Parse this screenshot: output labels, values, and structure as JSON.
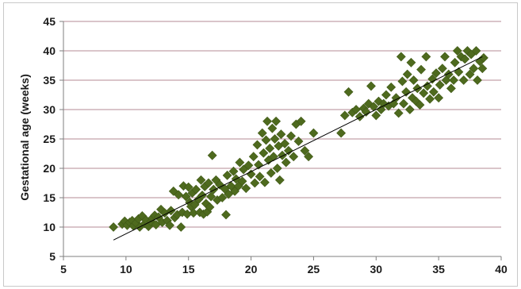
{
  "colors": {
    "marker": "#4e6a1e",
    "marker_edge": "#3f5816",
    "grid": "#b58b96",
    "axis": "#7f7f7f",
    "trendline": "#000000"
  },
  "chart_data": {
    "type": "scatter",
    "title": "",
    "xlabel": "",
    "ylabel": "Gestational age (weeks)",
    "xlim": [
      5,
      40
    ],
    "ylim": [
      5,
      45
    ],
    "x_ticks": [
      5,
      10,
      15,
      20,
      25,
      30,
      35,
      40
    ],
    "y_ticks": [
      5,
      10,
      15,
      20,
      25,
      30,
      35,
      40,
      45
    ],
    "grid": "horizontal",
    "marker": "diamond",
    "trendline": {
      "x": [
        9,
        38.5
      ],
      "y": [
        7.8,
        39.0
      ]
    },
    "series": [
      {
        "points": [
          [
            9.0,
            10.0
          ],
          [
            9.7,
            10.5
          ],
          [
            9.9,
            11.0
          ],
          [
            10.1,
            10.3
          ],
          [
            10.3,
            10.8
          ],
          [
            10.5,
            11.1
          ],
          [
            10.6,
            10.2
          ],
          [
            10.8,
            10.7
          ],
          [
            11.0,
            11.4
          ],
          [
            11.1,
            10.0
          ],
          [
            11.3,
            11.9
          ],
          [
            11.5,
            10.6
          ],
          [
            11.6,
            11.2
          ],
          [
            11.8,
            10.1
          ],
          [
            12.0,
            10.9
          ],
          [
            12.1,
            11.5
          ],
          [
            12.3,
            12.0
          ],
          [
            12.4,
            10.4
          ],
          [
            12.6,
            11.7
          ],
          [
            12.8,
            13.0
          ],
          [
            12.9,
            10.8
          ],
          [
            13.1,
            12.4
          ],
          [
            13.3,
            11.1
          ],
          [
            13.5,
            10.3
          ],
          [
            13.6,
            12.8
          ],
          [
            13.8,
            16.1
          ],
          [
            13.9,
            11.6
          ],
          [
            14.1,
            12.1
          ],
          [
            14.2,
            15.5
          ],
          [
            14.4,
            10.0
          ],
          [
            14.5,
            12.5
          ],
          [
            14.6,
            17.0
          ],
          [
            14.8,
            15.2
          ],
          [
            14.9,
            12.2
          ],
          [
            15.0,
            16.8
          ],
          [
            15.1,
            14.2
          ],
          [
            15.2,
            13.5
          ],
          [
            15.3,
            15.8
          ],
          [
            15.4,
            12.4
          ],
          [
            15.5,
            13.8
          ],
          [
            15.6,
            16.4
          ],
          [
            15.8,
            14.7
          ],
          [
            15.9,
            12.5
          ],
          [
            16.0,
            18.0
          ],
          [
            16.1,
            15.4
          ],
          [
            16.2,
            12.2
          ],
          [
            16.3,
            16.9
          ],
          [
            16.4,
            14.0
          ],
          [
            16.5,
            12.6
          ],
          [
            16.6,
            17.5
          ],
          [
            16.7,
            13.4
          ],
          [
            16.8,
            15.2
          ],
          [
            16.9,
            22.2
          ],
          [
            17.0,
            16.4
          ],
          [
            17.2,
            18.0
          ],
          [
            17.3,
            14.6
          ],
          [
            17.5,
            17.2
          ],
          [
            17.7,
            15.0
          ],
          [
            17.9,
            16.5
          ],
          [
            18.0,
            12.1
          ],
          [
            18.1,
            18.8
          ],
          [
            18.2,
            15.6
          ],
          [
            18.4,
            17.0
          ],
          [
            18.6,
            19.5
          ],
          [
            18.7,
            16.1
          ],
          [
            18.8,
            18.2
          ],
          [
            19.0,
            17.0
          ],
          [
            19.1,
            21.0
          ],
          [
            19.3,
            17.8
          ],
          [
            19.4,
            19.8
          ],
          [
            19.6,
            16.6
          ],
          [
            19.8,
            20.5
          ],
          [
            20.0,
            19.0
          ],
          [
            20.2,
            22.0
          ],
          [
            20.3,
            17.5
          ],
          [
            20.5,
            24.0
          ],
          [
            20.6,
            20.6
          ],
          [
            20.7,
            18.6
          ],
          [
            20.9,
            26.0
          ],
          [
            21.0,
            22.6
          ],
          [
            21.1,
            17.6
          ],
          [
            21.2,
            24.8
          ],
          [
            21.3,
            28.0
          ],
          [
            21.4,
            21.4
          ],
          [
            21.5,
            23.4
          ],
          [
            21.6,
            19.2
          ],
          [
            21.7,
            26.8
          ],
          [
            21.8,
            22.0
          ],
          [
            21.9,
            25.0
          ],
          [
            22.0,
            28.0
          ],
          [
            22.1,
            20.0
          ],
          [
            22.2,
            23.8
          ],
          [
            22.3,
            18.0
          ],
          [
            22.4,
            25.8
          ],
          [
            22.5,
            22.2
          ],
          [
            22.7,
            24.2
          ],
          [
            22.8,
            21.0
          ],
          [
            23.0,
            23.0
          ],
          [
            23.2,
            25.5
          ],
          [
            23.4,
            22.0
          ],
          [
            23.6,
            27.5
          ],
          [
            23.8,
            24.6
          ],
          [
            24.0,
            28.0
          ],
          [
            24.3,
            23.0
          ],
          [
            24.6,
            22.0
          ],
          [
            25.0,
            26.0
          ],
          [
            27.2,
            26.0
          ],
          [
            27.5,
            29.0
          ],
          [
            27.8,
            33.0
          ],
          [
            28.1,
            29.5
          ],
          [
            28.4,
            30.0
          ],
          [
            28.7,
            28.8
          ],
          [
            29.0,
            30.2
          ],
          [
            29.2,
            29.6
          ],
          [
            29.4,
            31.0
          ],
          [
            29.6,
            34.0
          ],
          [
            29.8,
            30.5
          ],
          [
            30.0,
            29.0
          ],
          [
            30.2,
            31.4
          ],
          [
            30.4,
            30.0
          ],
          [
            30.6,
            31.0
          ],
          [
            30.8,
            32.5
          ],
          [
            31.0,
            30.6
          ],
          [
            31.2,
            33.8
          ],
          [
            31.4,
            31.0
          ],
          [
            31.6,
            32.0
          ],
          [
            31.8,
            29.4
          ],
          [
            32.0,
            39.0
          ],
          [
            32.1,
            34.8
          ],
          [
            32.2,
            31.0
          ],
          [
            32.4,
            33.0
          ],
          [
            32.5,
            36.0
          ],
          [
            32.7,
            30.0
          ],
          [
            32.8,
            38.0
          ],
          [
            32.9,
            32.0
          ],
          [
            33.0,
            35.0
          ],
          [
            33.2,
            31.4
          ],
          [
            33.3,
            33.6
          ],
          [
            33.5,
            30.8
          ],
          [
            33.6,
            36.8
          ],
          [
            33.8,
            32.8
          ],
          [
            34.0,
            39.0
          ],
          [
            34.1,
            34.0
          ],
          [
            34.3,
            31.8
          ],
          [
            34.5,
            35.2
          ],
          [
            34.6,
            33.0
          ],
          [
            34.8,
            36.2
          ],
          [
            35.0,
            32.0
          ],
          [
            35.1,
            34.2
          ],
          [
            35.3,
            37.0
          ],
          [
            35.5,
            39.0
          ],
          [
            35.6,
            35.0
          ],
          [
            35.8,
            36.0
          ],
          [
            36.0,
            33.6
          ],
          [
            36.2,
            35.0
          ],
          [
            36.3,
            38.0
          ],
          [
            36.5,
            40.0
          ],
          [
            36.6,
            36.4
          ],
          [
            36.8,
            39.0
          ],
          [
            37.0,
            35.0
          ],
          [
            37.1,
            38.6
          ],
          [
            37.3,
            40.0
          ],
          [
            37.5,
            36.0
          ],
          [
            37.6,
            39.4
          ],
          [
            37.8,
            37.0
          ],
          [
            38.0,
            40.0
          ],
          [
            38.1,
            35.0
          ],
          [
            38.3,
            38.2
          ],
          [
            38.5,
            37.0
          ],
          [
            38.6,
            38.8
          ]
        ]
      }
    ]
  }
}
